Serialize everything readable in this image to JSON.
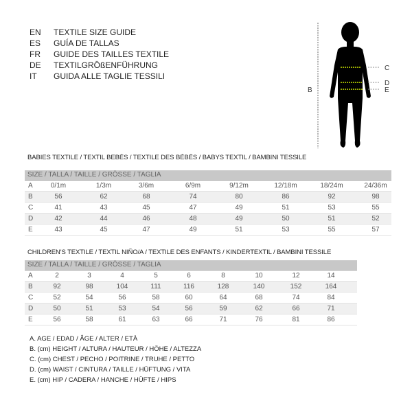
{
  "titles": [
    {
      "code": "EN",
      "text": "TEXTILE SIZE GUIDE"
    },
    {
      "code": "ES",
      "text": "GUÍA DE TALLAS"
    },
    {
      "code": "FR",
      "text": "GUIDE DES TAILLES TEXTILE"
    },
    {
      "code": "DE",
      "text": "TEXTILGRÖßENFÜHRUNG"
    },
    {
      "code": "IT",
      "text": "GUIDA ALLE TAGLIE TESSILI"
    }
  ],
  "figure": {
    "labels": {
      "B": "B",
      "C": "C",
      "D": "D",
      "E": "E"
    },
    "measure_line_color": "#c8e000"
  },
  "babies": {
    "title": "BABIES TEXTILE / TEXTIL BEBÉS / TEXTILE DES BÉBÉS / BABYS TEXTIL  / BAMBINI TESSILE",
    "header": "SIZE / TALLA / TAILLE / GRÖSSE / TAGLIA",
    "rows": [
      {
        "label": "A",
        "values": [
          "0/1m",
          "1/3m",
          "3/6m",
          "6/9m",
          "9/12m",
          "12/18m",
          "18/24m",
          "24/36m"
        ]
      },
      {
        "label": "B",
        "values": [
          "56",
          "62",
          "68",
          "74",
          "80",
          "86",
          "92",
          "98"
        ]
      },
      {
        "label": "C",
        "values": [
          "41",
          "43",
          "45",
          "47",
          "49",
          "51",
          "53",
          "55"
        ]
      },
      {
        "label": "D",
        "values": [
          "42",
          "44",
          "46",
          "48",
          "49",
          "50",
          "51",
          "52"
        ]
      },
      {
        "label": "E",
        "values": [
          "43",
          "45",
          "47",
          "49",
          "51",
          "53",
          "55",
          "57"
        ]
      }
    ]
  },
  "children": {
    "title": "CHILDREN'S TEXTILE / TEXTIL NIÑO/A / TEXTILE DES ENFANTS / KINDERTEXTIL / BAMBINI TESSILE",
    "header": "SIZE / TALLA / TAILLE / GRÖSSE / TAGLIA",
    "rows": [
      {
        "label": "A",
        "values": [
          "2",
          "3",
          "4",
          "5",
          "6",
          "8",
          "10",
          "12",
          "14"
        ]
      },
      {
        "label": "B",
        "values": [
          "92",
          "98",
          "104",
          "111",
          "116",
          "128",
          "140",
          "152",
          "164"
        ]
      },
      {
        "label": "C",
        "values": [
          "52",
          "54",
          "56",
          "58",
          "60",
          "64",
          "68",
          "74",
          "84"
        ]
      },
      {
        "label": "D",
        "values": [
          "50",
          "51",
          "53",
          "54",
          "56",
          "59",
          "62",
          "66",
          "71"
        ]
      },
      {
        "label": "E",
        "values": [
          "56",
          "58",
          "61",
          "63",
          "66",
          "71",
          "76",
          "81",
          "86"
        ]
      }
    ]
  },
  "legend": [
    "A. AGE / EDAD / ÂGE / ALTER / ETÀ",
    "B. (cm) HEIGHT / ALTURA / HAUTEUR / HÖHE / ALTEZZA",
    "C. (cm) CHEST / PECHO / POITRINE / TRUHE / PETTO",
    "D. (cm) WAIST / CINTURA / TAILLE / HÜFTUNG / VITA",
    "E. (cm) HIP / CADERA / HANCHE / HÜFTE / HIPS"
  ]
}
